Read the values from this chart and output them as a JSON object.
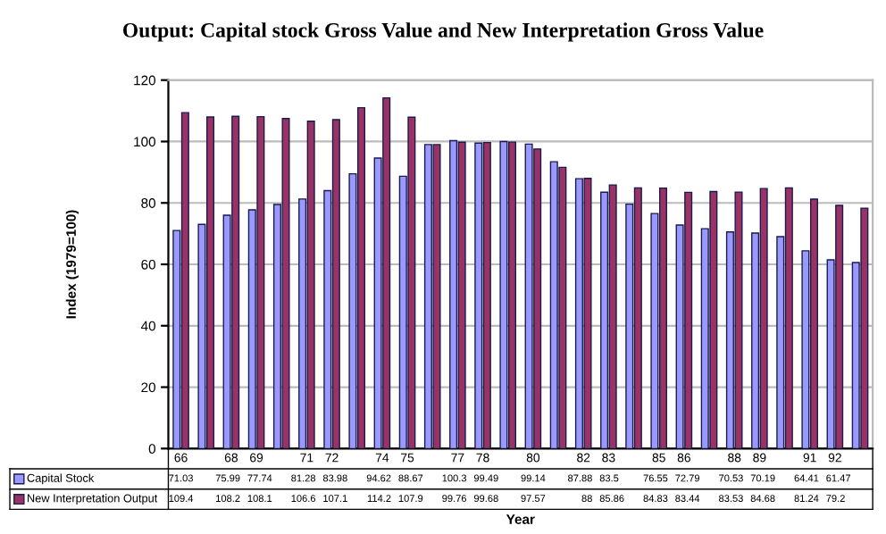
{
  "chart_data": {
    "type": "bar",
    "title": "Output: Capital stock Gross Value and New Interpretation Gross Value",
    "ylabel": "Index (1979=100)",
    "xlabel": "Year",
    "categories": [
      "66",
      null,
      "68",
      "69",
      null,
      "71",
      "72",
      null,
      "74",
      "75",
      null,
      "77",
      "78",
      null,
      "80",
      null,
      "82",
      "83",
      null,
      "85",
      "86",
      null,
      "88",
      "89",
      null,
      "91",
      "92",
      null
    ],
    "series": [
      {
        "name": "Capital Stock",
        "color": "#9999ff",
        "values": [
          71.03,
          73,
          75.99,
          77.74,
          79.5,
          81.28,
          83.98,
          89.5,
          94.62,
          88.67,
          99,
          100.3,
          99.49,
          100,
          99.14,
          93.4,
          87.88,
          83.5,
          79.6,
          76.55,
          72.79,
          71.6,
          70.53,
          70.19,
          69,
          64.41,
          61.47,
          60.6
        ],
        "value_labels": [
          "71.03",
          null,
          "75.99",
          "77.74",
          null,
          "81.28",
          "83.98",
          null,
          "94.62",
          "88.67",
          null,
          "100.3",
          "99.49",
          null,
          "99.14",
          null,
          "87.88",
          "83.5",
          null,
          "76.55",
          "72.79",
          null,
          "70.53",
          "70.19",
          null,
          "64.41",
          "61.47",
          null
        ]
      },
      {
        "name": "New Interpretation Output",
        "color": "#993366",
        "values": [
          109.4,
          108,
          108.2,
          108.1,
          107.5,
          106.6,
          107.1,
          111,
          114.2,
          107.9,
          99,
          99.76,
          99.68,
          99.8,
          97.57,
          91.6,
          88,
          85.86,
          84.9,
          84.83,
          83.44,
          83.7,
          83.53,
          84.68,
          84.9,
          81.24,
          79.2,
          78.3
        ],
        "value_labels": [
          "109.4",
          null,
          "108.2",
          "108.1",
          null,
          "106.6",
          "107.1",
          null,
          "114.2",
          "107.9",
          null,
          "99.76",
          "99.68",
          null,
          "97.57",
          null,
          "88",
          "85.86",
          null,
          "84.83",
          "83.44",
          null,
          "83.53",
          "84.68",
          null,
          "81.24",
          "79.2",
          null
        ]
      }
    ],
    "ylim": [
      0,
      120
    ],
    "yticks": [
      0,
      20,
      40,
      60,
      80,
      100,
      120
    ],
    "grid": "y",
    "legend": "bottom"
  }
}
